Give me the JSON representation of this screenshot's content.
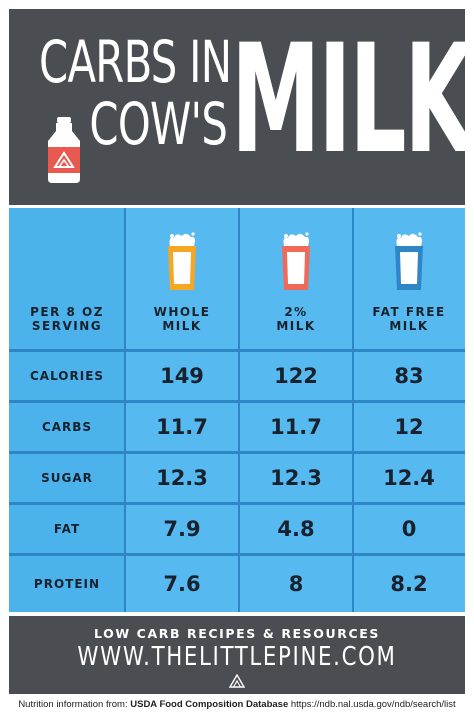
{
  "header": {
    "title_line1": "CARBS IN",
    "title_line2": "COW'S",
    "title_big": "MILK",
    "bottle_icon": "milk-bottle-icon",
    "bg_color": "#4a4d52"
  },
  "table": {
    "corner_label_line1": "PER 8 OZ",
    "corner_label_line2": "SERVING",
    "columns": [
      {
        "line1": "WHOLE",
        "line2": "MILK",
        "icon": "milk-glass-icon",
        "color": "#f5a623"
      },
      {
        "line1": "2%",
        "line2": "MILK",
        "icon": "milk-glass-icon",
        "color": "#f06a5a"
      },
      {
        "line1": "FAT FREE",
        "line2": "MILK",
        "icon": "milk-glass-icon",
        "color": "#4fb7ee"
      }
    ],
    "rows": [
      {
        "label": "CALORIES",
        "values": [
          "149",
          "122",
          "83"
        ]
      },
      {
        "label": "CARBS",
        "values": [
          "11.7",
          "11.7",
          "12"
        ]
      },
      {
        "label": "SUGAR",
        "values": [
          "12.3",
          "12.3",
          "12.4"
        ]
      },
      {
        "label": "FAT",
        "values": [
          "7.9",
          "4.8",
          "0"
        ]
      },
      {
        "label": "PROTEIN",
        "values": [
          "7.6",
          "8",
          "8.2"
        ]
      }
    ]
  },
  "footer": {
    "line1": "LOW CARB RECIPES & RESOURCES",
    "line2": "WWW.THELITTLEPINE.COM",
    "logo_icon": "pine-logo-icon"
  },
  "source": {
    "prefix": "Nutrition information from: ",
    "name": "USDA Food Composition Database",
    "suffix": " https://ndb.nal.usda.gov/ndb/search/list"
  }
}
